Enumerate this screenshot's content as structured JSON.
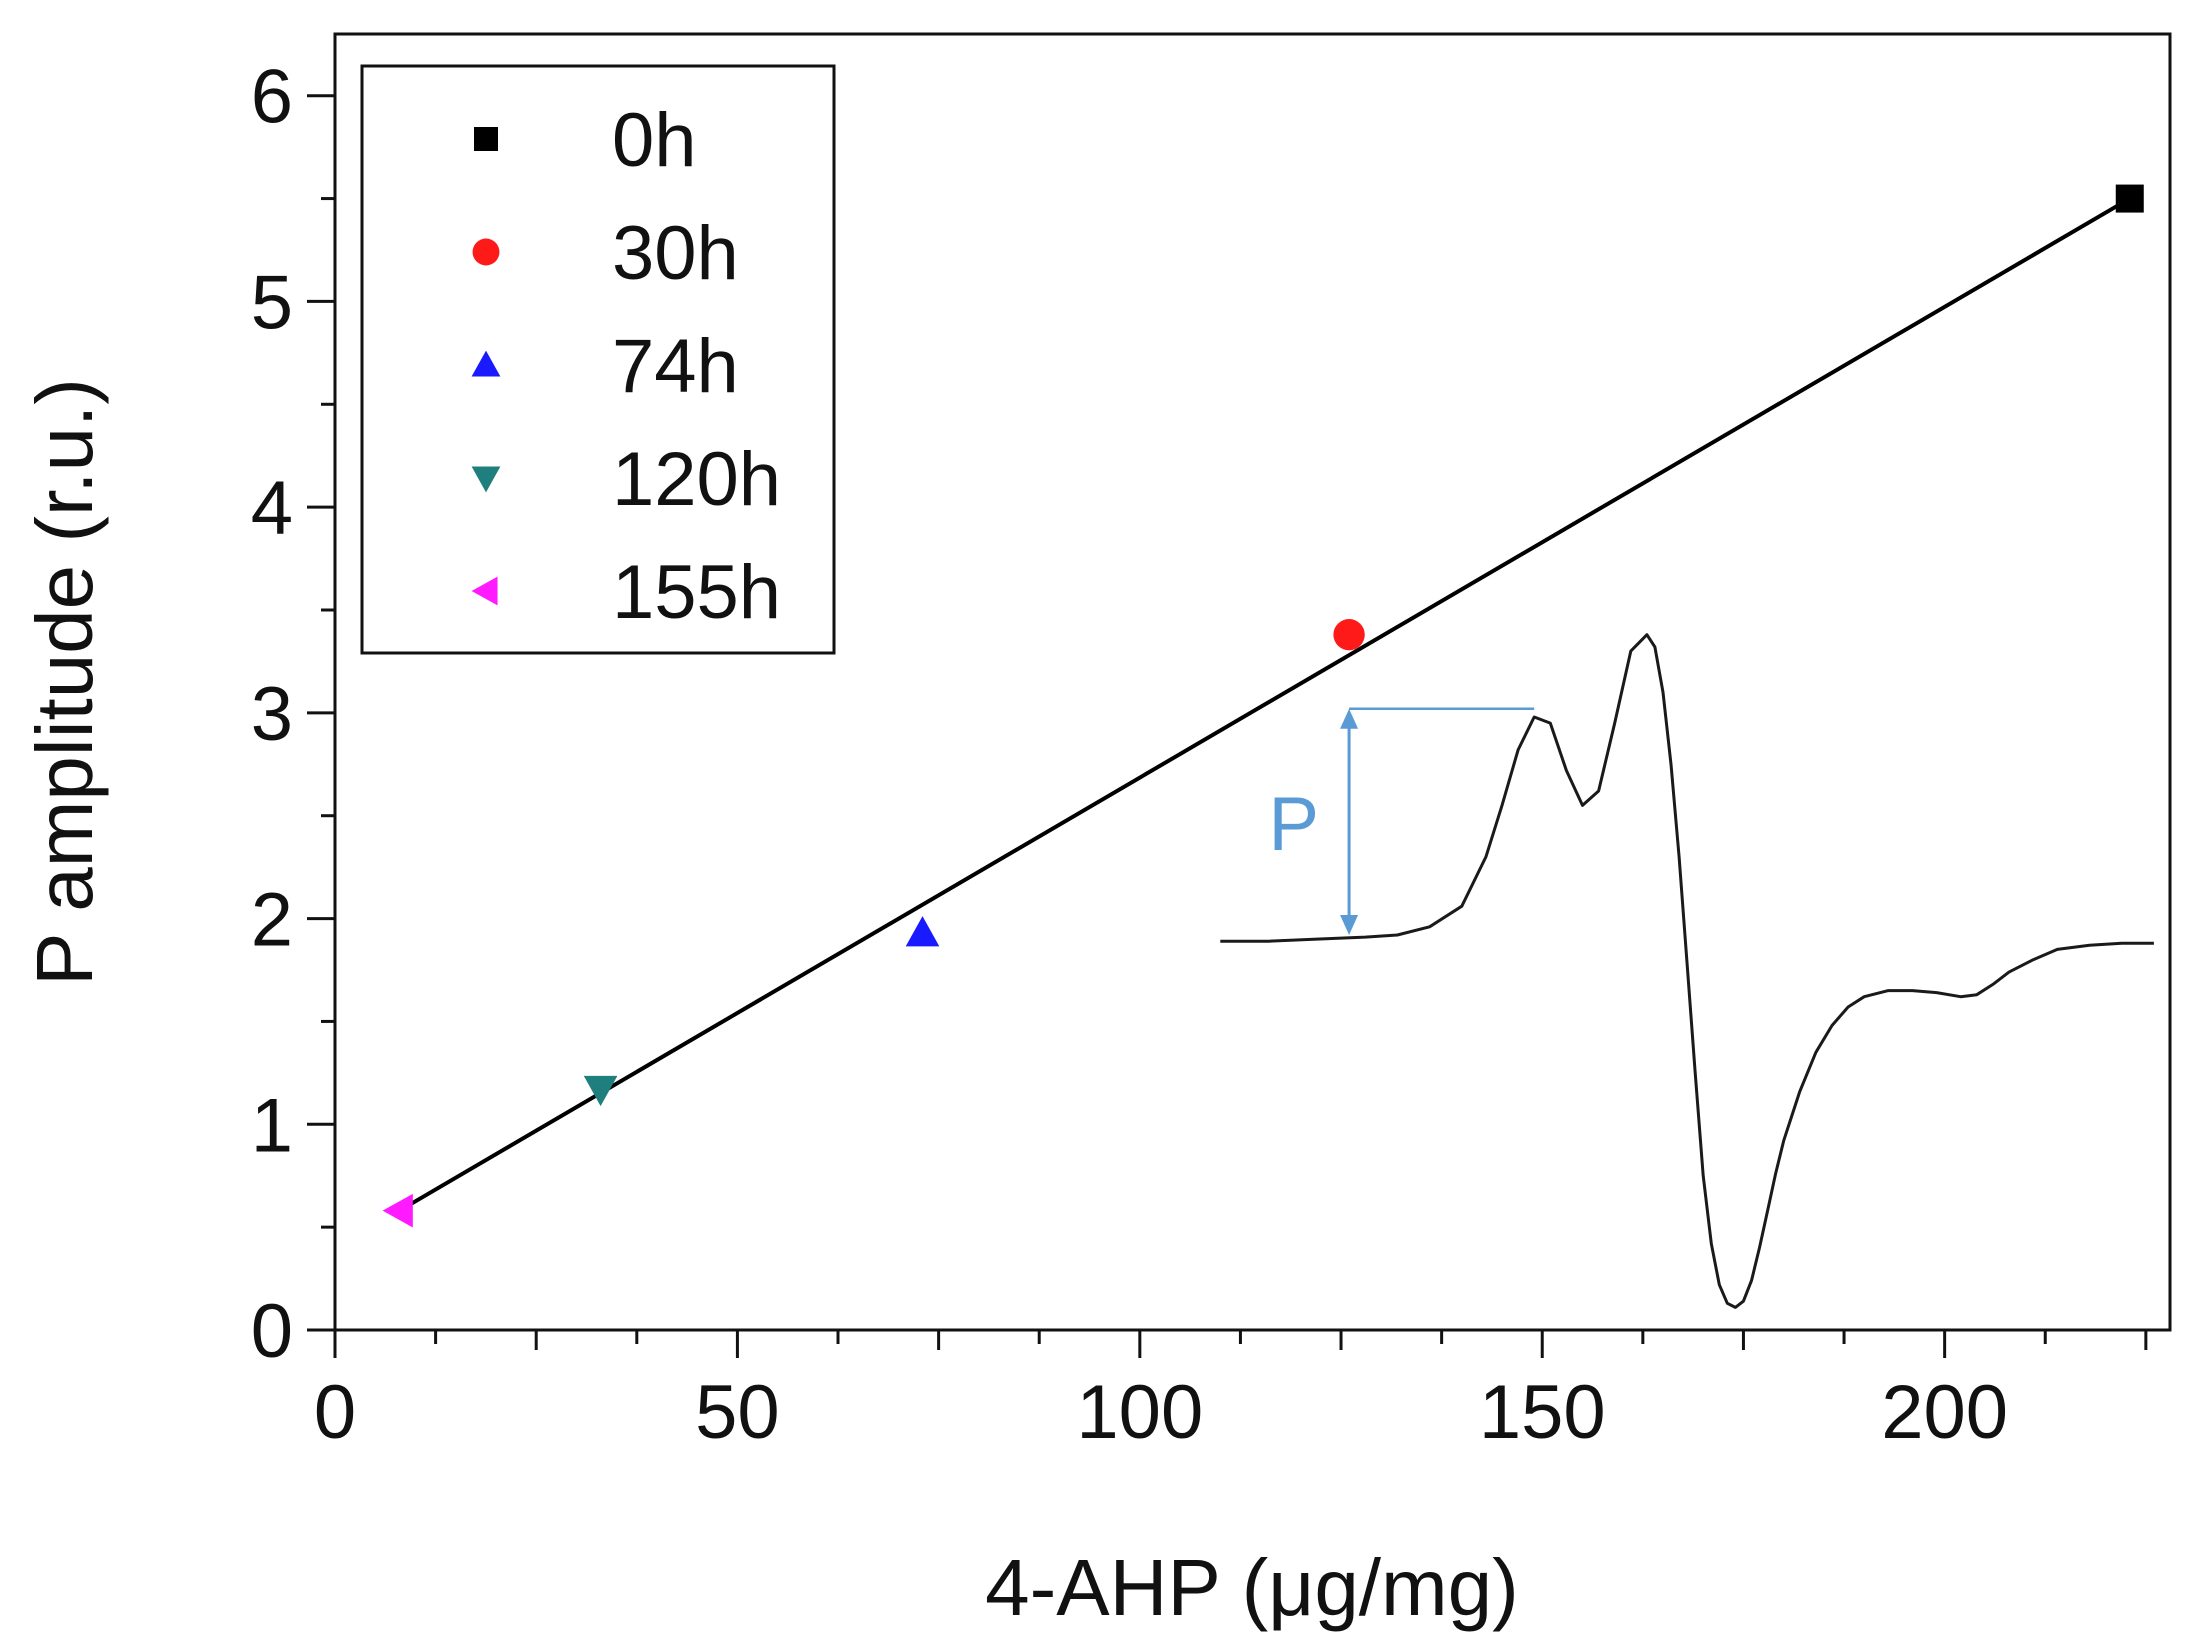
{
  "chart_data": {
    "type": "scatter",
    "title": "",
    "xlabel": "4-AHP (μg/mg)",
    "ylabel": "P amplitude (r.u.)",
    "xlim": [
      0,
      228
    ],
    "ylim": [
      0,
      6.3
    ],
    "x_ticks": [
      0,
      50,
      100,
      150,
      200
    ],
    "y_ticks": [
      0,
      1,
      2,
      3,
      4,
      5,
      6
    ],
    "legend_position": "top-left",
    "series": [
      {
        "name": "0h",
        "marker": "square",
        "color": "#000000",
        "x": 223,
        "y": 5.5
      },
      {
        "name": "30h",
        "marker": "circle",
        "color": "#ff1a1a",
        "x": 126,
        "y": 3.38
      },
      {
        "name": "74h",
        "marker": "triangle-up",
        "color": "#1a1aff",
        "x": 73,
        "y": 1.93
      },
      {
        "name": "120h",
        "marker": "triangle-down",
        "color": "#1f7f7f",
        "x": 33,
        "y": 1.17
      },
      {
        "name": "155h",
        "marker": "triangle-left",
        "color": "#ff1aff",
        "x": 8,
        "y": 0.58
      }
    ],
    "fit_line": {
      "x": [
        8,
        223
      ],
      "y": [
        0.58,
        5.5
      ],
      "color": "#000000"
    },
    "inset": {
      "label": "P",
      "label_color": "#5b9bd5",
      "description": "EPR spectrum inset",
      "amplitude_arrow": {
        "x": 126,
        "y_from": 1.92,
        "y_to": 3.02,
        "ref_line_x": [
          126,
          149
        ]
      },
      "spectrum": {
        "x": [
          110,
          116,
          122,
          128,
          132,
          136,
          140,
          143,
          145,
          147,
          149,
          151,
          153,
          155,
          157,
          159,
          161,
          163,
          164,
          165,
          166,
          167,
          168,
          169,
          170,
          171,
          172,
          173,
          174,
          175,
          176,
          177,
          178,
          179,
          180,
          182,
          184,
          186,
          188,
          190,
          193,
          196,
          199,
          202,
          204,
          206,
          208,
          211,
          214,
          218,
          222,
          226
        ],
        "y": [
          1.89,
          1.89,
          1.9,
          1.91,
          1.92,
          1.96,
          2.06,
          2.3,
          2.55,
          2.82,
          2.98,
          2.95,
          2.72,
          2.55,
          2.62,
          2.95,
          3.3,
          3.38,
          3.32,
          3.1,
          2.75,
          2.3,
          1.78,
          1.25,
          0.75,
          0.42,
          0.22,
          0.13,
          0.11,
          0.14,
          0.24,
          0.4,
          0.58,
          0.76,
          0.92,
          1.16,
          1.35,
          1.48,
          1.57,
          1.62,
          1.65,
          1.65,
          1.64,
          1.62,
          1.63,
          1.68,
          1.74,
          1.8,
          1.85,
          1.87,
          1.88,
          1.88
        ]
      }
    }
  }
}
